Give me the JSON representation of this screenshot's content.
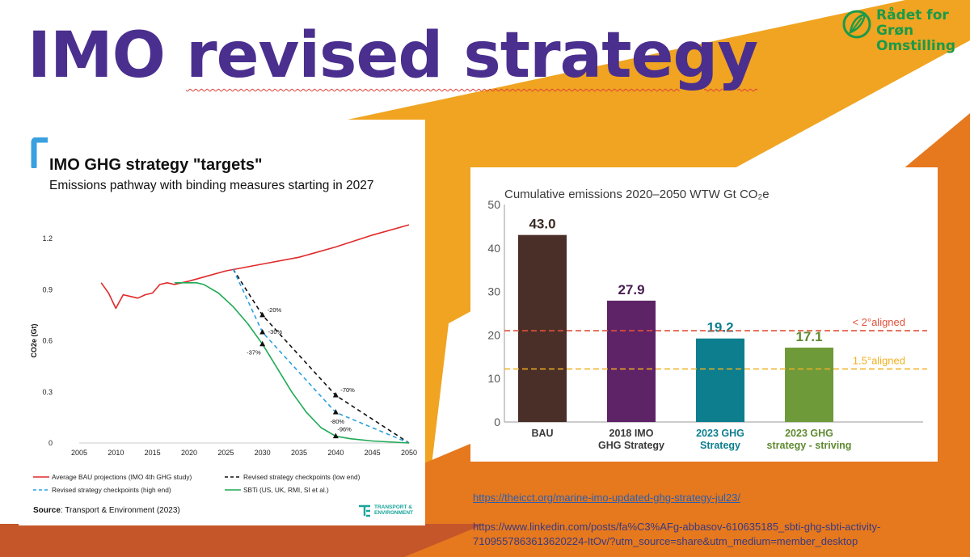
{
  "slide": {
    "title_part1": "IMO",
    "title_part2": "revised strategy",
    "colors": {
      "title": "#4a2f8f",
      "orange": "#e6781e",
      "gold": "#f0a421",
      "rust": "#c5562a"
    }
  },
  "logo": {
    "line1": "Rådet for",
    "line2": "Grøn",
    "line3": "Omstilling",
    "icon": "leaf-globe-icon"
  },
  "left_chart": {
    "title": "IMO GHG strategy \"targets\"",
    "subtitle": "Emissions pathway with binding measures starting in 2027",
    "source_label": "Source",
    "source_text": ": Transport & Environment (2023)",
    "te_logo_line1": "TRANSPORT &",
    "te_logo_line2": "ENVIRONMENT"
  },
  "right_chart_title": "Cumulative emissions 2020–2050 WTW Gt CO₂e",
  "links": {
    "link1": "https://theicct.org/marine-imo-updated-ghg-strategy-jul23/",
    "link2_line1": "https://www.linkedin.com/posts/fa%C3%AFg-abbasov-610635185_sbti-ghg-sbti-activity-",
    "link2_line2": "7109557863613620224-ItOv/?utm_source=share&utm_medium=member_desktop"
  },
  "chart_data": [
    {
      "type": "line",
      "title": "IMO GHG strategy \"targets\"",
      "subtitle": "Emissions pathway with binding measures starting in 2027",
      "xlabel": "",
      "ylabel": "CO2e (Gt)",
      "xlim": [
        2005,
        2050
      ],
      "ylim": [
        0,
        1.2
      ],
      "x_ticks": [
        "2005",
        "2010",
        "2015",
        "2020",
        "2025",
        "2030",
        "2035",
        "2040",
        "2045",
        "2050"
      ],
      "y_ticks": [
        "0",
        "0.3",
        "0.6",
        "0.9",
        "1.2"
      ],
      "series": [
        {
          "name": "Average BAU projections (IMO 4th GHG study)",
          "color": "#e02a2a",
          "dash": "",
          "x": [
            2008,
            2009,
            2010,
            2011,
            2012,
            2013,
            2014,
            2015,
            2016,
            2017,
            2018,
            2019,
            2020,
            2025,
            2030,
            2035,
            2040,
            2045,
            2050
          ],
          "y": [
            0.94,
            0.88,
            0.79,
            0.87,
            0.86,
            0.85,
            0.87,
            0.88,
            0.93,
            0.94,
            0.93,
            0.94,
            0.95,
            1.01,
            1.05,
            1.09,
            1.15,
            1.22,
            1.28
          ]
        },
        {
          "name": "Revised strategy checkpoints (low end)",
          "color": "#111111",
          "dash": "5,4",
          "x": [
            2026,
            2030,
            2040,
            2050
          ],
          "y": [
            1.02,
            0.75,
            0.28,
            0.0
          ]
        },
        {
          "name": "Revised strategy checkpoints (high end)",
          "color": "#2aa0e0",
          "dash": "5,4",
          "x": [
            2026,
            2030,
            2040,
            2050
          ],
          "y": [
            1.02,
            0.65,
            0.18,
            0.0
          ]
        },
        {
          "name": "SBTi (US, UK, RMI, SI et al.)",
          "color": "#1faa55",
          "dash": "",
          "x": [
            2018,
            2019,
            2020,
            2021,
            2022,
            2024,
            2026,
            2028,
            2030,
            2032,
            2034,
            2036,
            2038,
            2040,
            2042,
            2045,
            2050
          ],
          "y": [
            0.94,
            0.94,
            0.94,
            0.94,
            0.93,
            0.88,
            0.8,
            0.7,
            0.58,
            0.44,
            0.3,
            0.18,
            0.09,
            0.04,
            0.025,
            0.012,
            0.0
          ]
        }
      ],
      "annotations": [
        {
          "x": 2030,
          "y": 0.75,
          "text": "-20%"
        },
        {
          "x": 2030,
          "y": 0.65,
          "text": "-30%"
        },
        {
          "x": 2030,
          "y": 0.58,
          "text": "-37%"
        },
        {
          "x": 2040,
          "y": 0.28,
          "text": "-70%"
        },
        {
          "x": 2040,
          "y": 0.18,
          "text": "-80%"
        },
        {
          "x": 2040,
          "y": 0.04,
          "text": "-96%"
        }
      ]
    },
    {
      "type": "bar",
      "title": "Cumulative emissions 2020–2050 WTW Gt CO₂e",
      "ylim": [
        0,
        50
      ],
      "y_ticks": [
        "0",
        "10",
        "20",
        "30",
        "40",
        "50"
      ],
      "categories": [
        {
          "line1": "BAU",
          "line2": "",
          "value": 43.0,
          "label": "43.0",
          "color": "#4a2f28",
          "label_color": "#3a2a24"
        },
        {
          "line1": "2018 IMO",
          "line2": "GHG Strategy",
          "value": 27.9,
          "label": "27.9",
          "color": "#5e2366",
          "label_color": "#4a1e52"
        },
        {
          "line1": "2023 GHG",
          "line2": "Strategy",
          "value": 19.2,
          "label": "19.2",
          "color": "#0d7e8e",
          "label_color": "#0d7e8e"
        },
        {
          "line1": "2023 GHG",
          "line2": "strategy - striving",
          "value": 17.1,
          "label": "17.1",
          "color": "#6f9a3a",
          "label_color": "#5f8a30"
        }
      ],
      "reference_lines": [
        {
          "value": 21.0,
          "label": "< 2°aligned",
          "color": "#e0503a"
        },
        {
          "value": 12.2,
          "label": "1.5°aligned",
          "color": "#f0b020"
        }
      ]
    }
  ]
}
